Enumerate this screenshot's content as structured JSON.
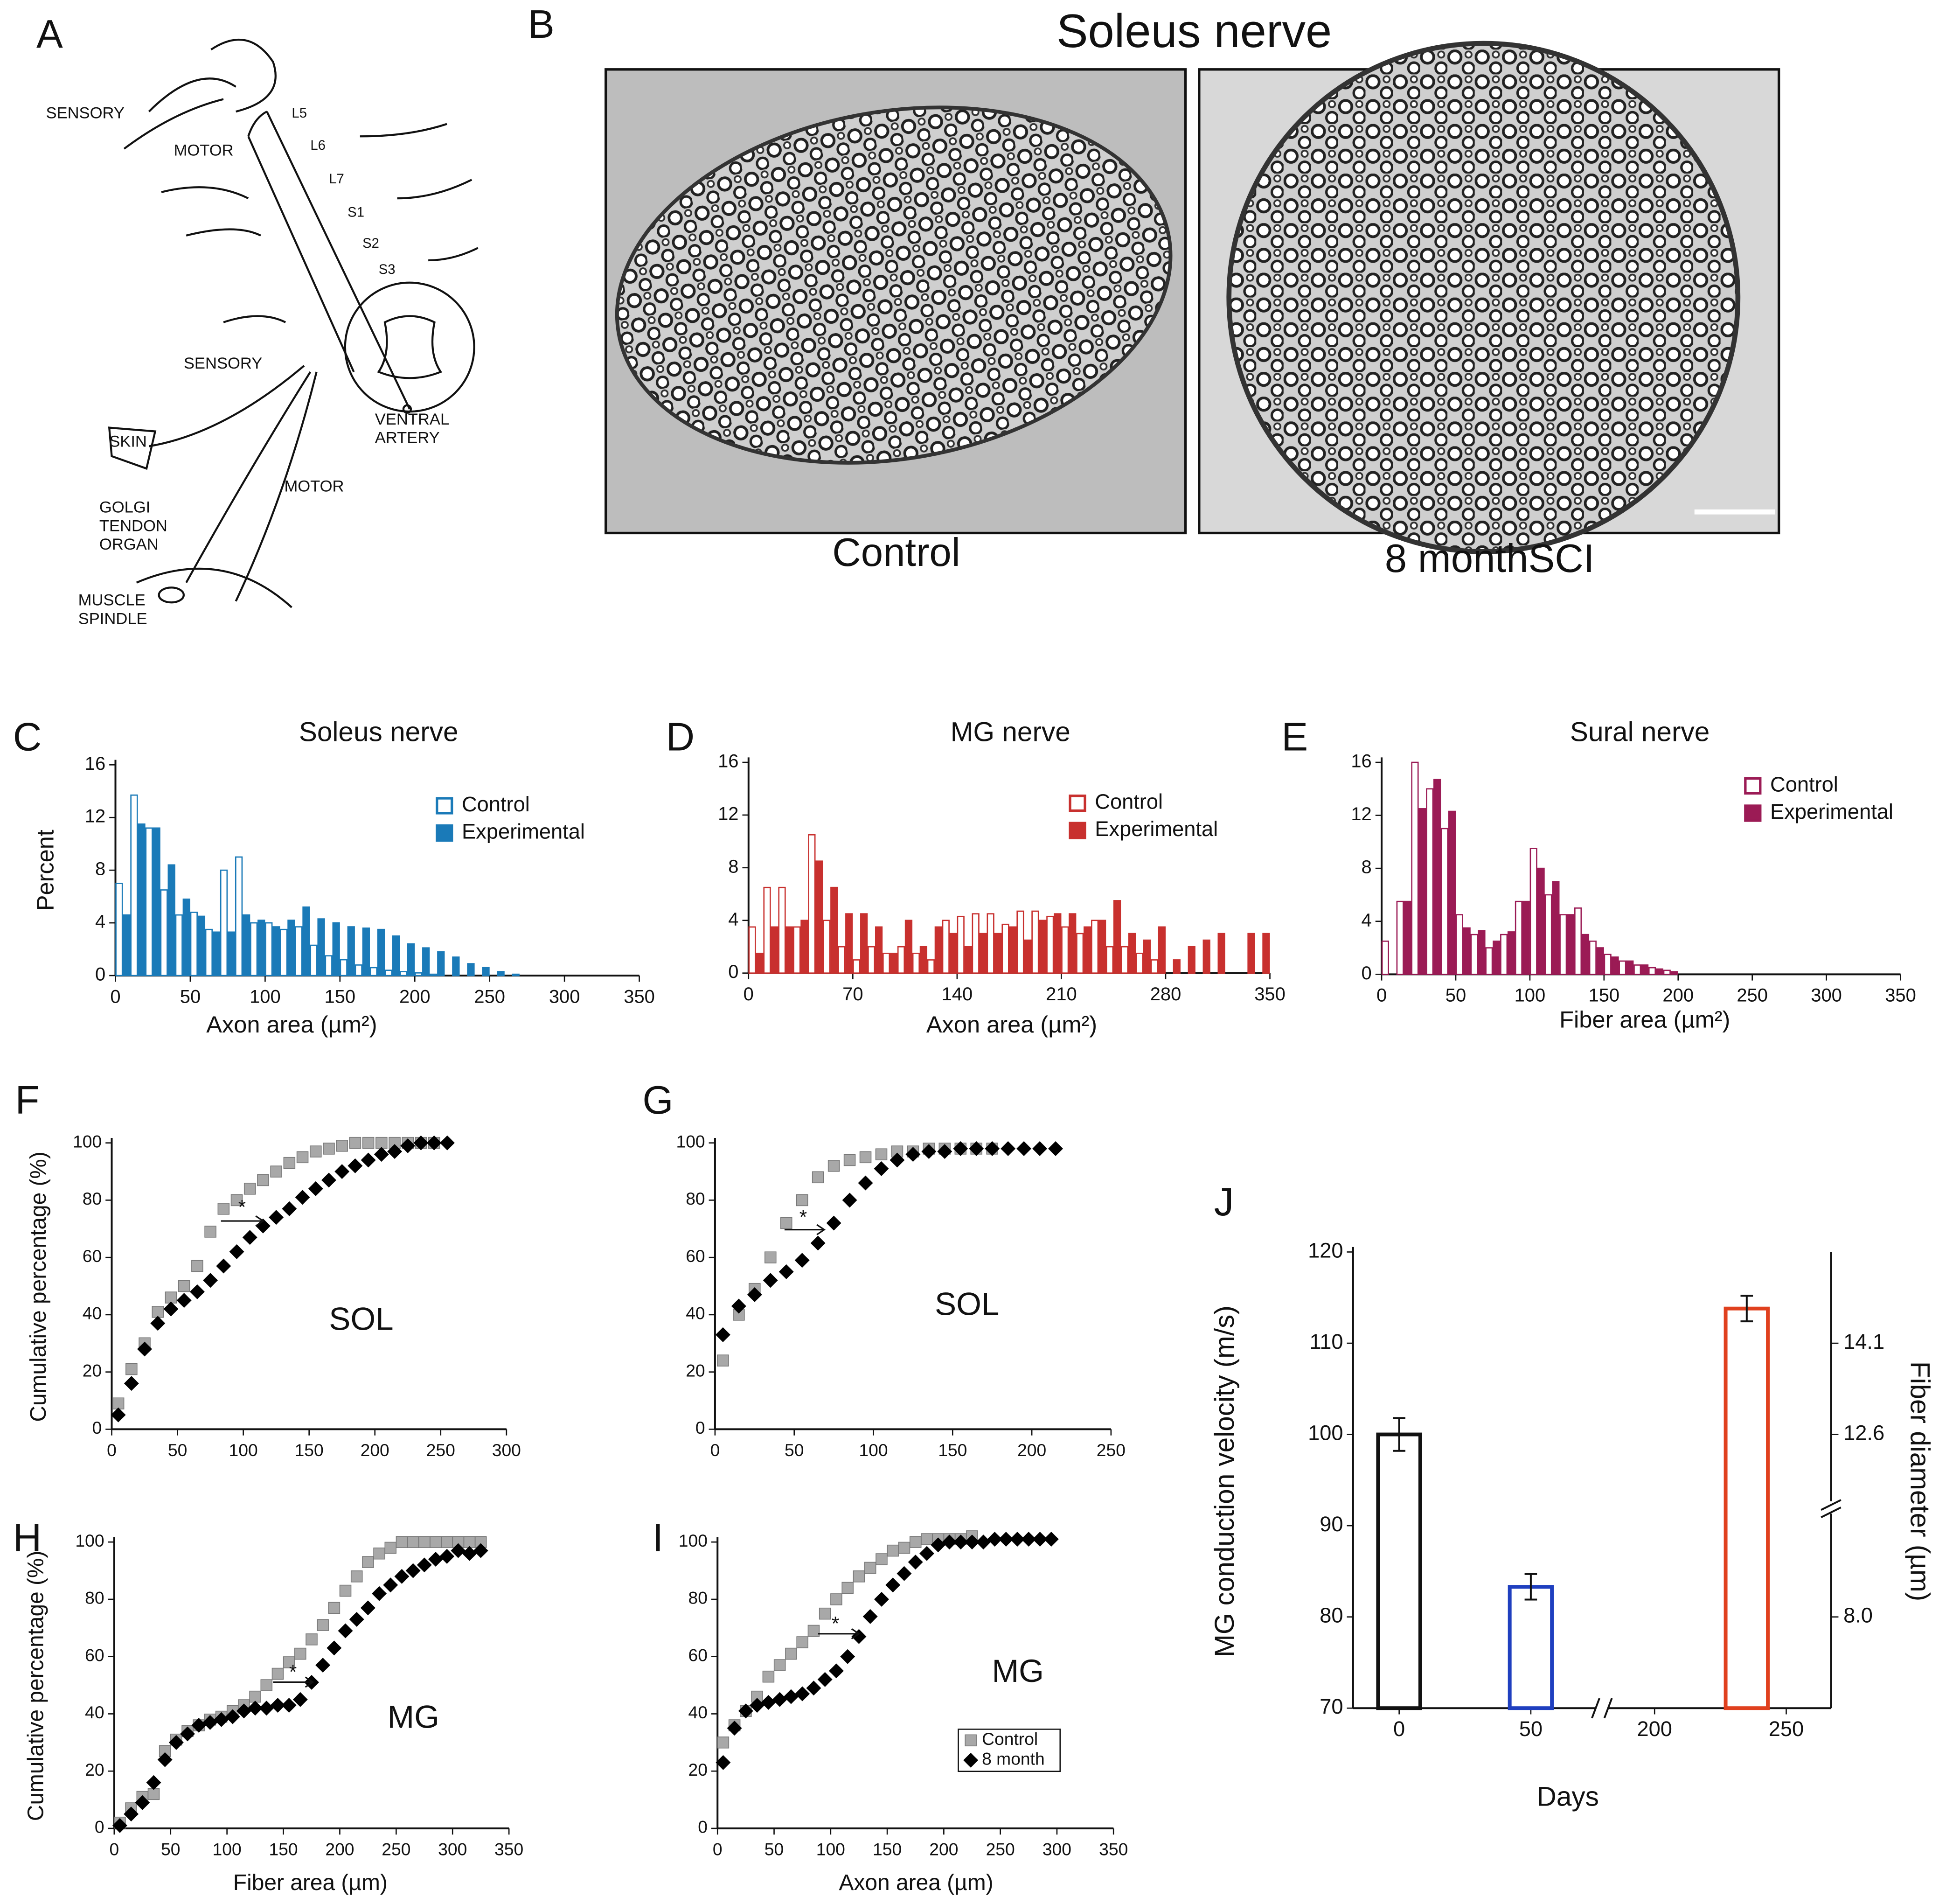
{
  "panel_labels": [
    "A",
    "B",
    "C",
    "D",
    "E",
    "F",
    "G",
    "H",
    "I",
    "J"
  ],
  "diagram": {
    "labels": [
      [
        "SENSORY"
      ],
      [
        "MOTOR"
      ],
      [
        "L5"
      ],
      [
        "L6"
      ],
      [
        "L7"
      ],
      [
        "S1"
      ],
      [
        "S2"
      ],
      [
        "S3"
      ],
      [
        "SENSORY"
      ],
      [
        "SKIN"
      ],
      [
        "VENTRAL",
        "ARTERY"
      ],
      [
        "MOTOR"
      ],
      [
        "GOLGI",
        "TENDON",
        "ORGAN"
      ],
      [
        "MUSCLE",
        "SPINDLE"
      ]
    ]
  },
  "micrographs": {
    "title": "Soleus nerve",
    "captions": [
      "Control",
      "8 monthSCI"
    ]
  },
  "chart_data": [
    {
      "type": "bar",
      "title": "Soleus nerve",
      "xlabel": "Axon area (µm²)",
      "ylabel": "Percent",
      "xlim": [
        0,
        350
      ],
      "xticks": [
        0,
        50,
        100,
        150,
        200,
        250,
        300,
        350
      ],
      "ylim": [
        0,
        16
      ],
      "yticks": [
        0,
        4,
        8,
        12,
        16
      ],
      "x": [
        5,
        15,
        25,
        35,
        45,
        55,
        65,
        75,
        85,
        95,
        105,
        115,
        125,
        135,
        145,
        155,
        165,
        175,
        185,
        195,
        205,
        215,
        225,
        235,
        245,
        255,
        265
      ],
      "series": [
        {
          "name": "Control",
          "color": "#1a7ab8",
          "style": "outline",
          "values": [
            7,
            13.7,
            11.2,
            6.5,
            4.6,
            4.8,
            3.5,
            8,
            9,
            4,
            4,
            3.5,
            3.7,
            2.3,
            1.5,
            1.2,
            0.8,
            0.6,
            0.4,
            0.3,
            0.2,
            0.1,
            0,
            0,
            0,
            0,
            0
          ]
        },
        {
          "name": "Experimental",
          "color": "#1a7ab8",
          "style": "filled",
          "values": [
            4.6,
            11.5,
            11.2,
            8.4,
            5.8,
            4.5,
            3.3,
            3.3,
            4.6,
            4.2,
            3.7,
            4.2,
            5.2,
            4.3,
            4,
            3.7,
            3.6,
            3.5,
            3,
            2.4,
            2.1,
            1.8,
            1.4,
            0.9,
            0.6,
            0.3,
            0.1
          ]
        }
      ]
    },
    {
      "type": "bar",
      "title": "MG nerve",
      "xlabel": "Axon area (µm²)",
      "xlim": [
        0,
        350
      ],
      "xticks": [
        0,
        70,
        140,
        210,
        280,
        350
      ],
      "ylim": [
        0,
        16
      ],
      "yticks": [
        0,
        4,
        8,
        12,
        16
      ],
      "x": [
        5,
        15,
        25,
        35,
        45,
        55,
        65,
        75,
        85,
        95,
        105,
        115,
        125,
        135,
        145,
        155,
        165,
        175,
        185,
        195,
        205,
        215,
        225,
        235,
        245,
        255,
        265,
        275,
        285,
        295,
        305,
        315,
        325,
        335,
        345
      ],
      "series": [
        {
          "name": "Control",
          "color": "#c8302e",
          "style": "outline",
          "values": [
            3.5,
            6.5,
            6.5,
            3.5,
            10.5,
            4,
            2,
            1,
            2,
            1.5,
            2,
            1.5,
            1,
            4,
            4.3,
            4.5,
            4.5,
            3.7,
            4.7,
            4.7,
            4.3,
            3.5,
            3,
            4,
            2,
            2,
            1.5,
            1,
            0,
            0,
            0,
            0,
            0,
            0,
            0
          ]
        },
        {
          "name": "Experimental",
          "color": "#c8302e",
          "style": "filled",
          "values": [
            1.5,
            3.5,
            3.5,
            4,
            8.5,
            6.5,
            4.5,
            4.5,
            3.5,
            1.5,
            4,
            2,
            3.5,
            3,
            2,
            3,
            3,
            3.5,
            2.5,
            4,
            4.5,
            4.5,
            3.5,
            4,
            5.5,
            3,
            2.5,
            3.5,
            1,
            2,
            2.5,
            3,
            0,
            3,
            3
          ]
        }
      ]
    },
    {
      "type": "bar",
      "title": "Sural nerve",
      "xlabel": "Fiber area (µm²)",
      "xlim": [
        0,
        350
      ],
      "xticks": [
        0,
        50,
        100,
        150,
        200,
        250,
        300,
        350
      ],
      "ylim": [
        0,
        16
      ],
      "yticks": [
        0,
        4,
        8,
        12,
        16
      ],
      "x": [
        5,
        15,
        25,
        35,
        45,
        55,
        65,
        75,
        85,
        95,
        105,
        115,
        125,
        135,
        145,
        155,
        165,
        175,
        185,
        195
      ],
      "series": [
        {
          "name": "Control",
          "color": "#9b1b55",
          "style": "outline",
          "values": [
            2.5,
            5.5,
            16,
            14,
            11,
            4.5,
            3,
            2,
            3,
            5.5,
            9.5,
            6,
            4.5,
            5,
            2.5,
            1.5,
            1,
            0.7,
            0.5,
            0.3
          ]
        },
        {
          "name": "Experimental",
          "color": "#9b1b55",
          "style": "filled",
          "values": [
            0,
            5.5,
            12.5,
            14.7,
            12.3,
            3.5,
            3.3,
            2.5,
            3.2,
            5.5,
            8,
            7,
            4.5,
            3,
            2,
            1.3,
            1,
            0.7,
            0.4,
            0.2
          ]
        }
      ]
    },
    {
      "type": "scatter",
      "ylabel": "Cumulative percentage (%)",
      "label": "SOL",
      "annotation": "*",
      "xlim": [
        0,
        300
      ],
      "xticks": [
        0,
        50,
        100,
        150,
        200,
        250,
        300
      ],
      "ylim": [
        0,
        100
      ],
      "yticks": [
        0,
        20,
        40,
        60,
        80,
        100
      ],
      "series": [
        {
          "color": "#a8a8a8",
          "marker": "square",
          "x": [
            5,
            15,
            25,
            35,
            45,
            55,
            65,
            75,
            85,
            95,
            105,
            115,
            125,
            135,
            145,
            155,
            165,
            175,
            185,
            195,
            205,
            215,
            225,
            235,
            245
          ],
          "values": [
            9,
            21,
            30,
            41,
            46,
            50,
            57,
            69,
            77,
            80,
            84,
            87,
            90,
            93,
            95,
            97,
            98,
            99,
            100,
            100,
            100,
            100,
            100,
            100,
            100
          ]
        },
        {
          "color": "#000000",
          "marker": "diamond",
          "x": [
            5,
            15,
            25,
            35,
            45,
            55,
            65,
            75,
            85,
            95,
            105,
            115,
            125,
            135,
            145,
            155,
            165,
            175,
            185,
            195,
            205,
            215,
            225,
            235,
            245,
            255
          ],
          "values": [
            5,
            16,
            28,
            37,
            42,
            45,
            48,
            52,
            57,
            62,
            67,
            71,
            74,
            77,
            81,
            84,
            87,
            90,
            92,
            94,
            96,
            97,
            99,
            100,
            100,
            100
          ]
        }
      ]
    },
    {
      "type": "scatter",
      "label": "SOL",
      "annotation": "*",
      "xlim": [
        0,
        250
      ],
      "xticks": [
        0,
        50,
        100,
        150,
        200,
        250
      ],
      "ylim": [
        0,
        100
      ],
      "yticks": [
        0,
        20,
        40,
        60,
        80,
        100
      ],
      "series": [
        {
          "color": "#a8a8a8",
          "marker": "square",
          "x": [
            5,
            15,
            25,
            35,
            45,
            55,
            65,
            75,
            85,
            95,
            105,
            115,
            125,
            135,
            145,
            155,
            165,
            175
          ],
          "values": [
            24,
            40,
            49,
            60,
            72,
            80,
            88,
            92,
            94,
            95,
            96,
            97,
            97,
            98,
            98,
            98,
            98,
            98
          ]
        },
        {
          "color": "#000000",
          "marker": "diamond",
          "x": [
            5,
            15,
            25,
            35,
            45,
            55,
            65,
            75,
            85,
            95,
            105,
            115,
            125,
            135,
            145,
            155,
            165,
            175,
            185,
            195,
            205,
            215
          ],
          "values": [
            33,
            43,
            47,
            52,
            55,
            59,
            65,
            72,
            80,
            86,
            91,
            94,
            96,
            97,
            97,
            98,
            98,
            98,
            98,
            98,
            98,
            98
          ]
        }
      ]
    },
    {
      "type": "scatter",
      "ylabel": "Cumulative percentage (%)",
      "xlabel": "Fiber area (µm)",
      "label": "MG",
      "annotation": "*",
      "xlim": [
        0,
        350
      ],
      "xticks": [
        0,
        50,
        100,
        150,
        200,
        250,
        300,
        350
      ],
      "ylim": [
        0,
        100
      ],
      "yticks": [
        0,
        20,
        40,
        60,
        80,
        100
      ],
      "series": [
        {
          "color": "#a8a8a8",
          "marker": "square",
          "x": [
            5,
            15,
            25,
            35,
            45,
            55,
            65,
            75,
            85,
            95,
            105,
            115,
            125,
            135,
            145,
            155,
            165,
            175,
            185,
            195,
            205,
            215,
            225,
            235,
            245,
            255,
            265,
            275,
            285,
            295,
            305,
            315,
            325
          ],
          "values": [
            2,
            7,
            11,
            12,
            27,
            31,
            34,
            36,
            38,
            39,
            41,
            43,
            46,
            50,
            54,
            58,
            61,
            66,
            71,
            77,
            83,
            88,
            93,
            96,
            98,
            100,
            100,
            100,
            100,
            100,
            100,
            100,
            100
          ]
        },
        {
          "color": "#000000",
          "marker": "diamond",
          "x": [
            5,
            15,
            25,
            35,
            45,
            55,
            65,
            75,
            85,
            95,
            105,
            115,
            125,
            135,
            145,
            155,
            165,
            175,
            185,
            195,
            205,
            215,
            225,
            235,
            245,
            255,
            265,
            275,
            285,
            295,
            305,
            315,
            325
          ],
          "values": [
            1,
            5,
            9,
            16,
            24,
            30,
            33,
            36,
            37,
            38,
            39,
            41,
            42,
            42,
            43,
            43,
            45,
            51,
            57,
            63,
            69,
            73,
            77,
            82,
            85,
            88,
            90,
            92,
            94,
            95,
            97,
            96,
            97
          ]
        }
      ]
    },
    {
      "type": "scatter",
      "xlabel": "Axon area (µm)",
      "label": "MG",
      "annotation": "*",
      "legend": "lower right",
      "xlim": [
        0,
        350
      ],
      "xticks": [
        0,
        50,
        100,
        150,
        200,
        250,
        300,
        350
      ],
      "ylim": [
        0,
        100
      ],
      "yticks": [
        0,
        20,
        40,
        60,
        80,
        100
      ],
      "series": [
        {
          "name": "Control",
          "color": "#a8a8a8",
          "marker": "square",
          "x": [
            5,
            15,
            25,
            35,
            45,
            55,
            65,
            75,
            85,
            95,
            105,
            115,
            125,
            135,
            145,
            155,
            165,
            175,
            185,
            195,
            205,
            215,
            225
          ],
          "values": [
            30,
            36,
            41,
            46,
            53,
            57,
            61,
            65,
            69,
            75,
            80,
            84,
            88,
            91,
            94,
            97,
            98,
            100,
            101,
            101,
            101,
            101,
            102
          ]
        },
        {
          "name": "8 month",
          "color": "#000000",
          "marker": "diamond",
          "x": [
            5,
            15,
            25,
            35,
            45,
            55,
            65,
            75,
            85,
            95,
            105,
            115,
            125,
            135,
            145,
            155,
            165,
            175,
            185,
            195,
            205,
            215,
            225,
            235,
            245,
            255,
            265,
            275,
            285,
            295
          ],
          "values": [
            23,
            35,
            41,
            43,
            44,
            45,
            46,
            47,
            49,
            52,
            55,
            60,
            67,
            74,
            80,
            85,
            89,
            93,
            96,
            99,
            100,
            100,
            100,
            100,
            101,
            101,
            101,
            101,
            101,
            101
          ]
        }
      ]
    },
    {
      "type": "bar",
      "xlabel": "Days",
      "ylabel": "MG conduction velocity (m/s)",
      "y2label": "Fiber diameter (µm)",
      "style": "outline",
      "x": [
        0,
        50,
        235
      ],
      "values": [
        100,
        83.3,
        113.8
      ],
      "errors": [
        1.8,
        1.4,
        1.4
      ],
      "colors": [
        "#111111",
        "#1f3fbf",
        "#e0401e"
      ],
      "xlim": [
        -17.5,
        267
      ],
      "xbreak": [
        77,
        180
      ],
      "xticks": [
        0,
        50,
        200,
        250
      ],
      "ylim": [
        70,
        120
      ],
      "yticks": [
        70,
        80,
        90,
        100,
        110,
        120
      ],
      "y2lim": [
        6.5,
        15.6
      ],
      "y2break": [
        9.8,
        11.4
      ],
      "y2ticks": [
        {
          "value": 8,
          "label": "8.0"
        },
        12.6,
        14.1
      ]
    }
  ]
}
